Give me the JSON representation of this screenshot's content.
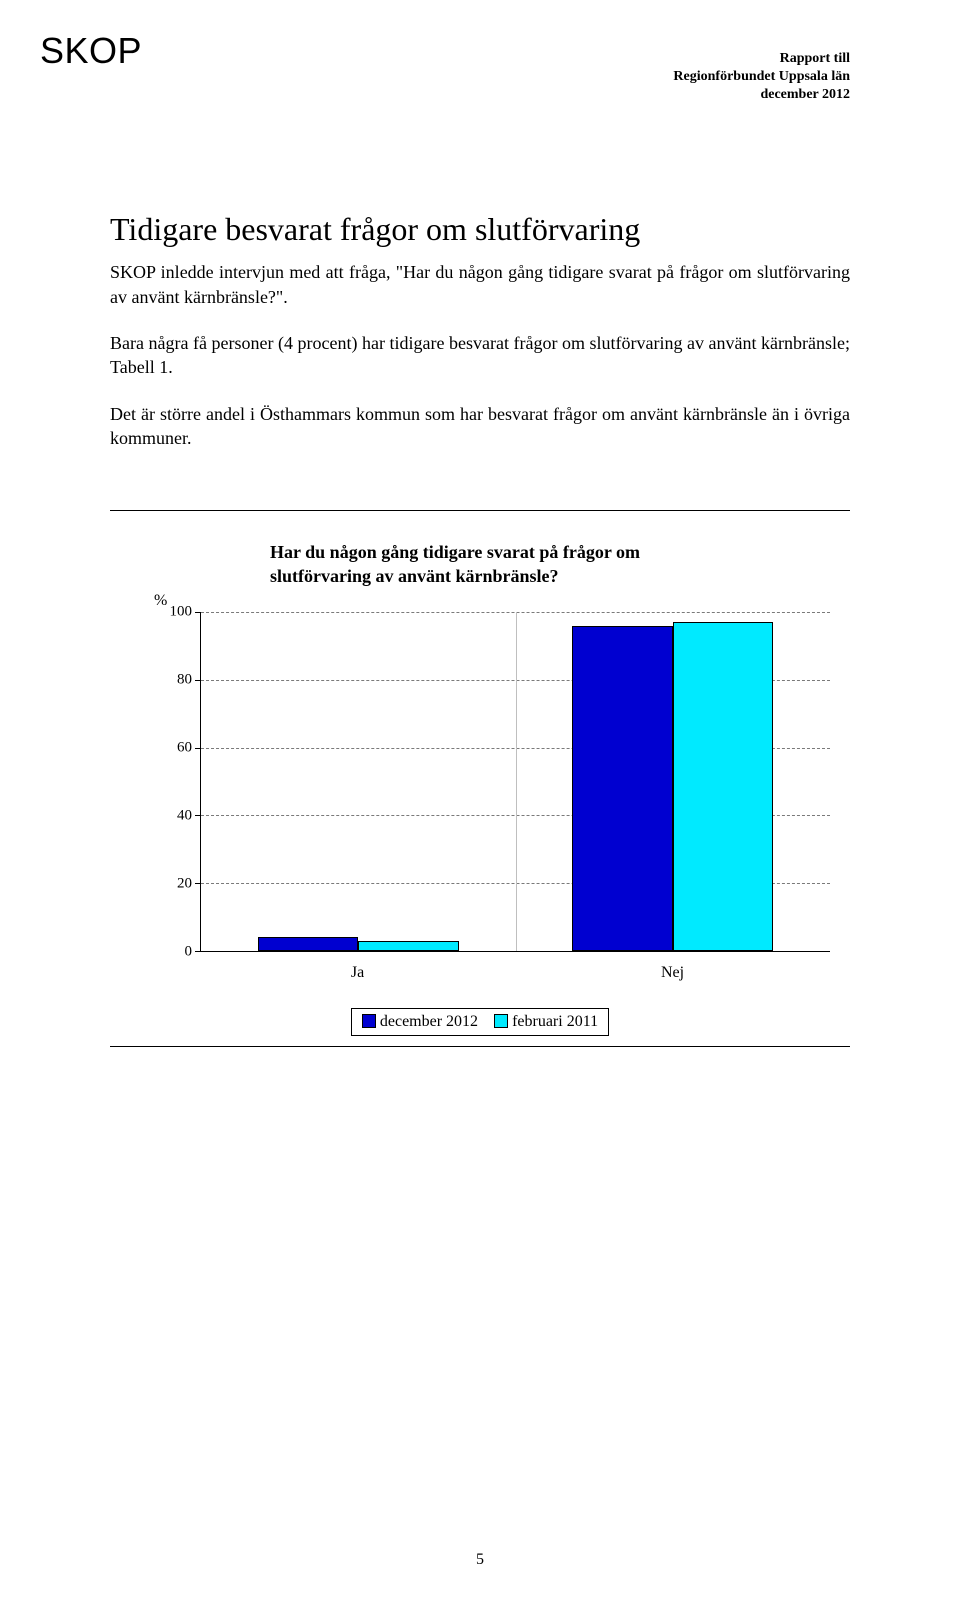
{
  "header": {
    "logo": "SKOP",
    "right_line1": "Rapport till",
    "right_line2": "Regionförbundet Uppsala län",
    "right_line3": "december 2012"
  },
  "heading": "Tidigare besvarat frågor om slutförvaring",
  "para1": "SKOP inledde intervjun med att fråga, \"Har du någon gång tidigare svarat på frågor om slutförvaring av använt kärnbränsle?\".",
  "para2": "Bara några få personer (4 procent) har tidigare besvarat frågor om slutförvaring av använt kärnbränsle; Tabell 1.",
  "para3": "Det är större andel i Östhammars kommun som har besvarat frågor om använt kärnbränsle än i övriga kommuner.",
  "chart": {
    "type": "bar",
    "title_line1": "Har du någon gång tidigare svarat på frågor om",
    "title_line2": "slutförvaring av använt kärnbränsle?",
    "ylabel": "%",
    "ylim": [
      0,
      100
    ],
    "ytick_step": 20,
    "yticks": [
      0,
      20,
      40,
      60,
      80,
      100
    ],
    "categories": [
      "Ja",
      "Nej"
    ],
    "series": [
      {
        "name": "december 2012",
        "color": "#0000d0",
        "values": [
          4,
          96
        ]
      },
      {
        "name": "februari 2011",
        "color": "#00eaff",
        "values": [
          3,
          97
        ]
      }
    ],
    "grid_color": "#7a7a7a",
    "category_sep_color": "#bfbfbf",
    "bar_border": "#000000",
    "bar_rel_width": 0.32,
    "bar_gap": 0.0
  },
  "page_number": "5"
}
